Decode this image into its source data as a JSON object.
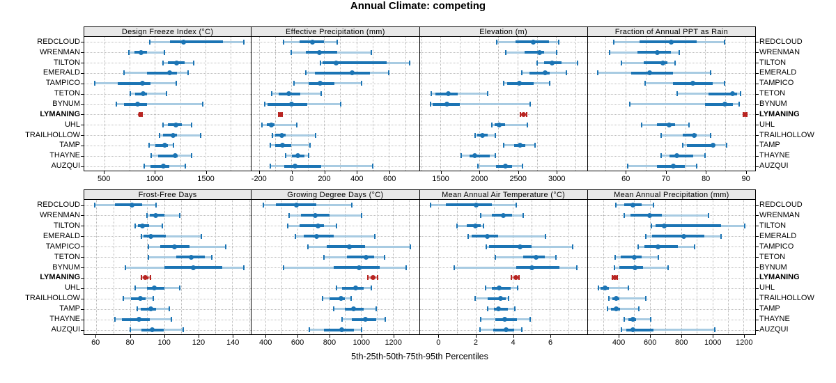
{
  "title": "Annual Climate: competing",
  "caption": "5th-25th-50th-75th-95th Percentiles",
  "colors": {
    "blue": "#1b74b4",
    "light_blue": "#a8cbe2",
    "red": "#b82421",
    "light_red": "#d78e8c",
    "grid": "#b5b5b5",
    "strip_bg": "#e8e8e8",
    "border": "#000000"
  },
  "chart_data": {
    "type": "dotplot-percentiles",
    "percentiles": [
      5,
      25,
      50,
      75,
      95
    ],
    "stations": [
      "REDCLOUD",
      "WRENMAN",
      "TILTON",
      "EMERALD",
      "TAMPICO",
      "TETON",
      "BYNUM",
      "LYMANING",
      "UHL",
      "TRAILHOLLOW",
      "TAMP",
      "THAYNE",
      "AUZQUI"
    ],
    "highlight_station": "LYMANING",
    "legend_note": "thin light band = 5th-95th, thick band = 25th-75th, dot = median",
    "panels": [
      {
        "title": "Design Freeze Index (°C)",
        "xlim": [
          300,
          1950
        ],
        "ticks": [
          500,
          1000,
          1500
        ],
        "minor_step": 250,
        "values": [
          [
            945,
            1145,
            1285,
            1670,
            1880
          ],
          [
            740,
            795,
            860,
            920,
            1095
          ],
          [
            1080,
            1130,
            1215,
            1290,
            1385
          ],
          [
            695,
            920,
            1145,
            1220,
            1325
          ],
          [
            405,
            630,
            875,
            955,
            1210
          ],
          [
            755,
            805,
            880,
            920,
            1115
          ],
          [
            615,
            690,
            830,
            920,
            1475
          ],
          [
            845,
            852,
            858,
            866,
            875
          ],
          [
            1080,
            1130,
            1205,
            1265,
            1365
          ],
          [
            1045,
            1080,
            1180,
            1220,
            1455
          ],
          [
            940,
            1000,
            1095,
            1130,
            1185
          ],
          [
            960,
            1030,
            1200,
            1225,
            1365
          ],
          [
            895,
            955,
            1080,
            1140,
            1300
          ]
        ]
      },
      {
        "title": "Effective Precipitation (mm)",
        "xlim": [
          -245,
          785
        ],
        "ticks": [
          -200,
          0,
          200,
          400,
          600
        ],
        "minor_step": 100,
        "values": [
          [
            -50,
            50,
            130,
            200,
            285
          ],
          [
            0,
            90,
            175,
            285,
            495
          ],
          [
            180,
            195,
            275,
            590,
            730
          ],
          [
            90,
            145,
            375,
            485,
            600
          ],
          [
            15,
            105,
            180,
            265,
            435
          ],
          [
            -120,
            -80,
            -15,
            55,
            185
          ],
          [
            -165,
            -148,
            0,
            100,
            305
          ],
          [
            -80,
            -73,
            -68,
            -62,
            -55
          ],
          [
            -180,
            -150,
            -125,
            -105,
            35
          ],
          [
            -115,
            -100,
            -60,
            -35,
            150
          ],
          [
            -130,
            -100,
            -55,
            0,
            115
          ],
          [
            -35,
            5,
            40,
            80,
            105
          ],
          [
            -130,
            -45,
            25,
            185,
            505
          ]
        ]
      },
      {
        "title": "Elevation (m)",
        "xlim": [
          1230,
          3400
        ],
        "ticks": [
          1500,
          2000,
          2500,
          3000
        ],
        "minor_step": 250,
        "values": [
          [
            2230,
            2475,
            2705,
            2910,
            3040
          ],
          [
            2350,
            2595,
            2790,
            2850,
            3015
          ],
          [
            2760,
            2850,
            2950,
            3075,
            3280
          ],
          [
            2560,
            2655,
            2860,
            2925,
            3135
          ],
          [
            2320,
            2370,
            2530,
            2715,
            2925
          ],
          [
            1380,
            1430,
            1600,
            1725,
            2110
          ],
          [
            1370,
            1400,
            1580,
            1755,
            2670
          ],
          [
            2545,
            2565,
            2580,
            2600,
            2620
          ],
          [
            2170,
            2205,
            2265,
            2340,
            2630
          ],
          [
            1950,
            1980,
            2050,
            2110,
            2210
          ],
          [
            2320,
            2460,
            2540,
            2600,
            2730
          ],
          [
            1770,
            1880,
            1950,
            2145,
            2210
          ],
          [
            1990,
            2220,
            2350,
            2430,
            2565
          ]
        ]
      },
      {
        "title": "Fraction of Annual PPT as Rain",
        "xlim": [
          50.5,
          92.5
        ],
        "ticks": [
          60,
          70,
          80,
          90
        ],
        "minor_step": 5,
        "values": [
          [
            57,
            63.5,
            71.5,
            78,
            85
          ],
          [
            56,
            63,
            68,
            71.5,
            73.5
          ],
          [
            59,
            64.5,
            69.5,
            70.5,
            72.5
          ],
          [
            53,
            61.5,
            66,
            72,
            81.5
          ],
          [
            65,
            72,
            77,
            82,
            85
          ],
          [
            73,
            81,
            87,
            88.2,
            89
          ],
          [
            61,
            80,
            85,
            87,
            88.7
          ],
          [
            89.7,
            89.9,
            90.1,
            90.3,
            90.5
          ],
          [
            64,
            68,
            71,
            72.5,
            76
          ],
          [
            69,
            74.5,
            77.3,
            78,
            81.5
          ],
          [
            74.5,
            75.5,
            82,
            82.5,
            85.5
          ],
          [
            69,
            71,
            73,
            77,
            80
          ],
          [
            60.5,
            68,
            72,
            75,
            78
          ]
        ]
      },
      {
        "title": "Frost-Free Days",
        "xlim": [
          53,
          151
        ],
        "ticks": [
          60,
          80,
          100,
          120,
          140
        ],
        "minor_step": 10,
        "values": [
          [
            59,
            71,
            81,
            87,
            95
          ],
          [
            90,
            91.5,
            95,
            100,
            109
          ],
          [
            83,
            84.5,
            87,
            91,
            99
          ],
          [
            86.5,
            88,
            92,
            101,
            122
          ],
          [
            90.5,
            97.5,
            106,
            115,
            136
          ],
          [
            90.5,
            107,
            116,
            124,
            128
          ],
          [
            77,
            100,
            117,
            134,
            147
          ],
          [
            86.5,
            88,
            89,
            90.5,
            92
          ],
          [
            83,
            90,
            94,
            100,
            109
          ],
          [
            76,
            80.5,
            86,
            89,
            93.5
          ],
          [
            84,
            86,
            92,
            95,
            103
          ],
          [
            71,
            75,
            85,
            91.5,
            104
          ],
          [
            80,
            86.5,
            93,
            99.5,
            111
          ]
        ]
      },
      {
        "title": "Growing Degree Days (°C)",
        "xlim": [
          313,
          1365
        ],
        "ticks": [
          400,
          600,
          800,
          1000,
          1200
        ],
        "minor_step": 100,
        "values": [
          [
            385,
            465,
            595,
            720,
            945
          ],
          [
            550,
            625,
            715,
            805,
            1005
          ],
          [
            540,
            615,
            730,
            770,
            850
          ],
          [
            590,
            640,
            723,
            830,
            1090
          ],
          [
            670,
            785,
            930,
            1030,
            1315
          ],
          [
            770,
            915,
            1035,
            1085,
            1150
          ],
          [
            512,
            832,
            990,
            1120,
            1290
          ],
          [
            1048,
            1065,
            1078,
            1092,
            1108
          ],
          [
            850,
            885,
            970,
            1018,
            1068
          ],
          [
            760,
            805,
            875,
            900,
            940
          ],
          [
            830,
            900,
            955,
            1020,
            1100
          ],
          [
            885,
            945,
            1030,
            1100,
            1155
          ],
          [
            675,
            770,
            880,
            960,
            1005
          ]
        ]
      },
      {
        "title": "Mean Annual Air Temperature (°C)",
        "xlim": [
          -1,
          8
        ],
        "ticks": [
          0,
          2,
          4,
          6
        ],
        "minor_step": 1,
        "values": [
          [
            -0.4,
            0.4,
            2.05,
            2.9,
            4.2
          ],
          [
            2.3,
            2.9,
            3.5,
            4.0,
            4.6
          ],
          [
            1.0,
            1.55,
            2.0,
            2.3,
            2.45
          ],
          [
            1.6,
            1.8,
            2.65,
            3.25,
            5.8
          ],
          [
            2.6,
            2.75,
            4.4,
            5.05,
            7.25
          ],
          [
            3.1,
            4.6,
            5.3,
            5.75,
            6.35
          ],
          [
            0.85,
            4.2,
            5.05,
            6.55,
            7.5
          ],
          [
            3.95,
            4.1,
            4.2,
            4.3,
            4.35
          ],
          [
            2.55,
            2.9,
            3.3,
            3.9,
            4.3
          ],
          [
            2.0,
            2.65,
            3.35,
            3.65,
            3.8
          ],
          [
            2.65,
            3.0,
            3.25,
            3.75,
            4.15
          ],
          [
            2.3,
            3.1,
            3.6,
            4.25,
            4.95
          ],
          [
            2.25,
            2.95,
            3.65,
            4.1,
            4.5
          ]
        ]
      },
      {
        "title": "Mean Annual Precipitation (mm)",
        "xlim": [
          203,
          1274
        ],
        "ticks": [
          400,
          600,
          800,
          1000,
          1200
        ],
        "minor_step": 100,
        "values": [
          [
            385,
            435,
            495,
            550,
            625
          ],
          [
            435,
            475,
            600,
            680,
            980
          ],
          [
            610,
            640,
            695,
            1060,
            1210
          ],
          [
            575,
            615,
            820,
            950,
            1060
          ],
          [
            525,
            565,
            655,
            780,
            890
          ],
          [
            380,
            415,
            500,
            550,
            655
          ],
          [
            375,
            405,
            505,
            560,
            720
          ],
          [
            362,
            370,
            377,
            384,
            392
          ],
          [
            270,
            285,
            315,
            340,
            465
          ],
          [
            340,
            360,
            385,
            405,
            575
          ],
          [
            330,
            350,
            385,
            410,
            530
          ],
          [
            435,
            465,
            495,
            515,
            605
          ],
          [
            420,
            450,
            495,
            625,
            1020
          ]
        ]
      }
    ]
  }
}
